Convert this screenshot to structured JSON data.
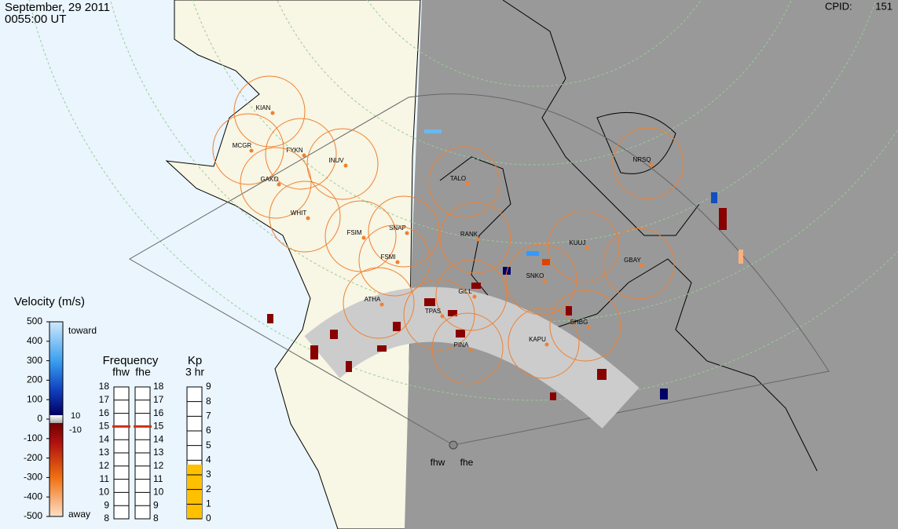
{
  "header": {
    "date": "September, 29 2011",
    "time": "0055:00 UT",
    "cpid_label": "CPID:",
    "cpid": 151
  },
  "stations": [
    "KIAN",
    "MCGR",
    "FYKN",
    "INUV",
    "GAKO",
    "WHIT",
    "FSIM",
    "SNAP",
    "FSMI",
    "TALO",
    "RANK",
    "NRSQ",
    "KUUJ",
    "GBAY",
    "SNKO",
    "ATHA",
    "GILL",
    "TPAS",
    "PINA",
    "KAPU",
    "SHBG"
  ],
  "radars": [
    "fhw",
    "fhe"
  ],
  "velocity_scale": {
    "title": "Velocity (m/s)",
    "ticks": [
      500,
      400,
      300,
      200,
      100,
      0,
      -100,
      -200,
      -300,
      -400,
      -500
    ],
    "toward": "toward",
    "away": "away",
    "threshold_labels": [
      10,
      -10
    ]
  },
  "frequency": {
    "title": "Frequency",
    "radars": [
      {
        "name": "fhw",
        "value": 15
      },
      {
        "name": "fhe",
        "value": 15
      }
    ],
    "ticks": [
      18,
      17,
      16,
      15,
      14,
      13,
      12,
      11,
      10,
      9,
      8
    ]
  },
  "kp": {
    "title": "Kp",
    "period": "3 hr",
    "value": 3.7,
    "ticks": [
      9,
      8,
      7,
      6,
      5,
      4,
      3,
      2,
      1,
      0
    ]
  }
}
